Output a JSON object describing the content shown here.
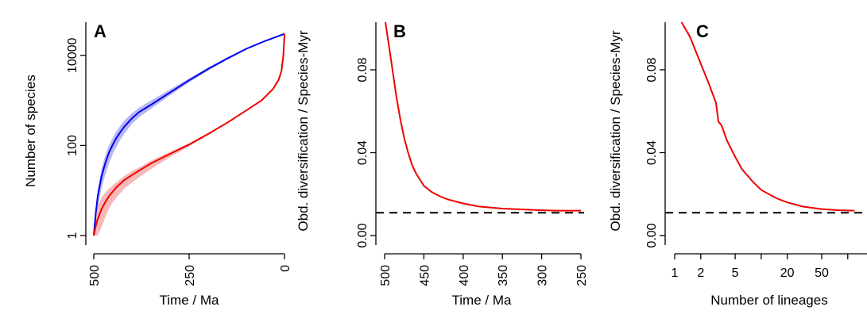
{
  "chart_data": [
    {
      "panel_label": "A",
      "type": "line",
      "xlabel": "Time / Ma",
      "ylabel": "Number of species",
      "xlim": [
        500,
        0
      ],
      "ylim": [
        1,
        100000
      ],
      "y_scale": "log",
      "x_ticks": [
        500,
        250,
        0
      ],
      "x_tick_labels": [
        "500",
        "250",
        "0"
      ],
      "y_ticks": [
        1,
        100,
        10000
      ],
      "y_tick_labels": [
        "1",
        "100",
        "10000"
      ],
      "series": [
        {
          "color": "#0000ee",
          "band_color": "#b8b8f5",
          "x": [
            500,
            495,
            490,
            480,
            470,
            460,
            450,
            440,
            430,
            420,
            400,
            380,
            350,
            300,
            250,
            200,
            150,
            100,
            50,
            0
          ],
          "y": [
            1,
            3,
            7,
            20,
            40,
            70,
            105,
            150,
            200,
            260,
            400,
            560,
            800,
            1500,
            2800,
            5000,
            8500,
            14000,
            21000,
            30000
          ],
          "lower": [
            1,
            2,
            4,
            11,
            22,
            40,
            65,
            95,
            135,
            180,
            300,
            430,
            650,
            1300,
            2500,
            4600,
            8000,
            13500,
            20500,
            30000
          ],
          "upper": [
            1,
            4,
            10,
            30,
            60,
            100,
            150,
            210,
            280,
            360,
            520,
            700,
            1000,
            1750,
            3100,
            5400,
            9000,
            14500,
            21500,
            30000
          ]
        },
        {
          "color": "#ee0000",
          "band_color": "#f8b8b8",
          "x": [
            500,
            495,
            490,
            480,
            470,
            460,
            450,
            440,
            420,
            400,
            380,
            350,
            300,
            250,
            200,
            150,
            100,
            60,
            30,
            15,
            8,
            3,
            0
          ],
          "y": [
            1,
            1.6,
            2.3,
            3.8,
            5.5,
            7.5,
            9.5,
            12,
            17,
            22,
            28,
            40,
            65,
            105,
            180,
            320,
            600,
            1000,
            1800,
            2900,
            4500,
            10000,
            30000
          ],
          "lower": [
            1,
            1,
            1,
            1.5,
            2.5,
            4,
            5.5,
            7,
            11,
            15,
            20,
            30,
            55,
            95,
            170,
            310,
            590,
            990,
            1780,
            2880,
            4480,
            9950,
            30000
          ],
          "upper": [
            1,
            2.5,
            4.5,
            7,
            9,
            11,
            13,
            15.5,
            21,
            27,
            33,
            46,
            72,
            112,
            188,
            330,
            610,
            1010,
            1820,
            2920,
            4520,
            10050,
            30000
          ]
        }
      ]
    },
    {
      "panel_label": "B",
      "type": "line",
      "xlabel": "Time / Ma",
      "ylabel": "Obd. diversification / Species-Myr",
      "xlim": [
        505,
        245
      ],
      "ylim": [
        -0.003,
        0.103
      ],
      "x_ticks": [
        500,
        450,
        400,
        350,
        300,
        250
      ],
      "x_tick_labels": [
        "500",
        "450",
        "400",
        "350",
        "300",
        "250"
      ],
      "y_ticks": [
        0,
        0.04,
        0.08
      ],
      "y_tick_labels": [
        "0.00",
        "0.04",
        "0.08"
      ],
      "reference_line": 0.011,
      "series": [
        {
          "color": "#ee0000",
          "x": [
            499,
            495,
            490,
            485,
            480,
            475,
            470,
            465,
            460,
            455,
            450,
            440,
            430,
            420,
            400,
            380,
            350,
            320,
            300,
            280,
            250
          ],
          "y": [
            0.103,
            0.093,
            0.08,
            0.067,
            0.056,
            0.047,
            0.04,
            0.034,
            0.03,
            0.027,
            0.024,
            0.021,
            0.019,
            0.0175,
            0.0155,
            0.014,
            0.013,
            0.0125,
            0.0122,
            0.012,
            0.012
          ]
        }
      ]
    },
    {
      "panel_label": "C",
      "type": "line",
      "xlabel": "Number of lineages",
      "xlim": [
        1,
        30000
      ],
      "x_scale": "log",
      "ylim": [
        -0.003,
        0.103
      ],
      "x_ticks": [
        1,
        2,
        5,
        20,
        50
      ],
      "x_tick_labels": [
        "1",
        "2",
        "5",
        "20",
        "50"
      ],
      "x_unlabeled_ticks": [
        10,
        100
      ],
      "y_ticks": [
        0,
        0.04,
        0.08
      ],
      "y_tick_labels": [
        "0.00",
        "0.04",
        "0.08"
      ],
      "reference_line": 0.011,
      "series": [
        {
          "color": "#ee0000",
          "x": [
            1.2,
            1.5,
            2,
            2.5,
            3,
            3.2,
            3.5,
            4,
            5,
            6,
            8,
            10,
            15,
            20,
            30,
            50,
            80,
            120
          ],
          "y": [
            0.103,
            0.096,
            0.083,
            0.073,
            0.064,
            0.055,
            0.053,
            0.046,
            0.038,
            0.032,
            0.026,
            0.022,
            0.018,
            0.016,
            0.014,
            0.0128,
            0.0122,
            0.012
          ]
        }
      ]
    }
  ]
}
